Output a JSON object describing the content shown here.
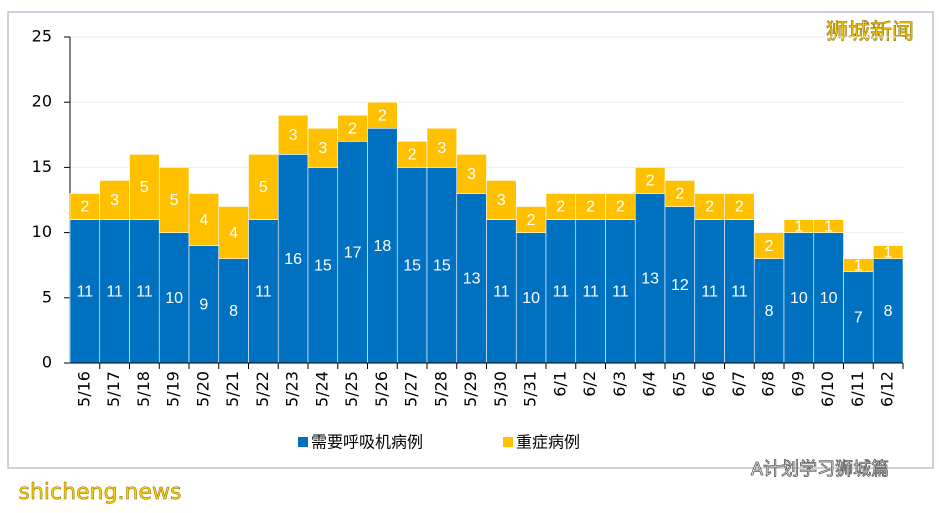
{
  "chart_data": {
    "type": "bar",
    "stacked": true,
    "categories": [
      "5/16",
      "5/17",
      "5/18",
      "5/19",
      "5/20",
      "5/21",
      "5/22",
      "5/23",
      "5/24",
      "5/25",
      "5/26",
      "5/27",
      "5/28",
      "5/29",
      "5/30",
      "5/31",
      "6/1",
      "6/2",
      "6/3",
      "6/4",
      "6/5",
      "6/6",
      "6/7",
      "6/8",
      "6/9",
      "6/10",
      "6/11",
      "6/12"
    ],
    "series": [
      {
        "name": "需要呼吸机病例",
        "color": "#0070c0",
        "values": [
          11,
          11,
          11,
          10,
          9,
          8,
          11,
          16,
          15,
          17,
          18,
          15,
          15,
          13,
          11,
          10,
          11,
          11,
          11,
          13,
          12,
          11,
          11,
          8,
          10,
          10,
          7,
          8
        ]
      },
      {
        "name": "重症病例",
        "color": "#ffc000",
        "values": [
          2,
          3,
          5,
          5,
          4,
          4,
          5,
          3,
          3,
          2,
          2,
          2,
          3,
          3,
          3,
          2,
          2,
          2,
          2,
          2,
          2,
          2,
          2,
          2,
          1,
          1,
          1,
          1
        ]
      }
    ],
    "ylim": [
      0,
      25
    ],
    "yticks": [
      0,
      5,
      10,
      15,
      20,
      25
    ],
    "grid": true,
    "legend": "bottom"
  },
  "watermarks": [
    "狮城新闻",
    "A计划学习狮城篇",
    "shicheng.news"
  ]
}
